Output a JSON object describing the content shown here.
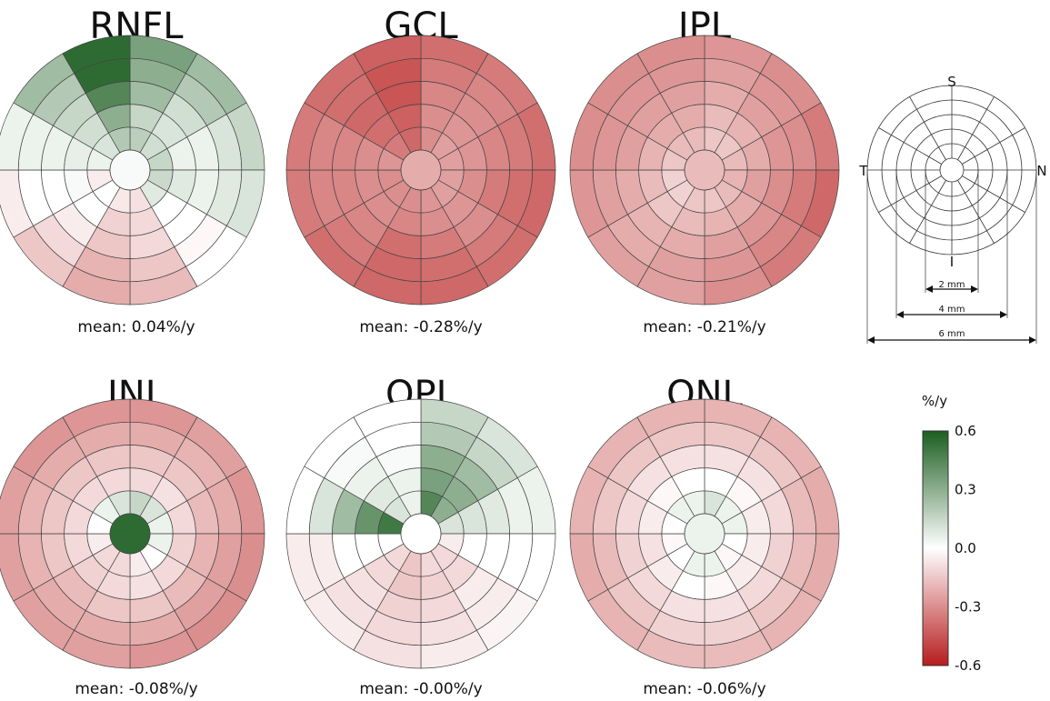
{
  "panels": [
    {
      "title": "RNFL",
      "mean": "mean: 0.04%/y",
      "rings": [
        [
          0.18,
          0.12,
          0.15,
          0.14,
          0.08,
          -0.08,
          -0.06,
          0.0,
          -0.05,
          0.05,
          0.1,
          0.2
        ],
        [
          0.15,
          0.1,
          0.05,
          0.08,
          0.0,
          -0.1,
          -0.12,
          0.0,
          0.02,
          0.06,
          0.12,
          0.3
        ],
        [
          0.25,
          0.12,
          0.05,
          0.05,
          0.0,
          -0.1,
          -0.15,
          -0.05,
          0.0,
          0.05,
          0.15,
          0.45
        ],
        [
          0.3,
          0.2,
          0.1,
          0.08,
          -0.02,
          -0.15,
          -0.2,
          -0.1,
          0.0,
          0.05,
          0.2,
          0.55
        ],
        [
          0.35,
          0.25,
          0.15,
          0.1,
          0.0,
          -0.18,
          -0.22,
          -0.15,
          -0.05,
          0.05,
          0.25,
          0.55
        ]
      ]
    },
    {
      "title": "GCL",
      "mean": "mean: -0.28%/y",
      "rings": [
        [
          -0.3,
          -0.25,
          -0.25,
          -0.25,
          -0.25,
          -0.28,
          -0.3,
          -0.3,
          -0.3,
          -0.28,
          -0.35,
          -0.4
        ],
        [
          -0.3,
          -0.28,
          -0.28,
          -0.3,
          -0.28,
          -0.3,
          -0.32,
          -0.3,
          -0.3,
          -0.3,
          -0.38,
          -0.42
        ],
        [
          -0.32,
          -0.3,
          -0.32,
          -0.35,
          -0.3,
          -0.35,
          -0.38,
          -0.32,
          -0.32,
          -0.32,
          -0.4,
          -0.45
        ],
        [
          -0.35,
          -0.32,
          -0.35,
          -0.38,
          -0.35,
          -0.38,
          -0.4,
          -0.35,
          -0.32,
          -0.32,
          -0.38,
          -0.45
        ],
        [
          -0.38,
          -0.35,
          -0.38,
          -0.4,
          -0.38,
          -0.4,
          -0.4,
          -0.38,
          -0.35,
          -0.35,
          -0.38,
          -0.42
        ]
      ]
    },
    {
      "title": "IPL",
      "mean": "mean: -0.21%/y",
      "rings": [
        [
          -0.15,
          -0.15,
          -0.18,
          -0.2,
          -0.18,
          -0.15,
          -0.15,
          -0.12,
          -0.12,
          -0.15,
          -0.18,
          -0.18
        ],
        [
          -0.18,
          -0.2,
          -0.22,
          -0.25,
          -0.22,
          -0.2,
          -0.18,
          -0.15,
          -0.18,
          -0.2,
          -0.22,
          -0.22
        ],
        [
          -0.22,
          -0.25,
          -0.28,
          -0.3,
          -0.28,
          -0.25,
          -0.22,
          -0.2,
          -0.22,
          -0.25,
          -0.25,
          -0.25
        ],
        [
          -0.25,
          -0.28,
          -0.3,
          -0.35,
          -0.32,
          -0.28,
          -0.25,
          -0.22,
          -0.25,
          -0.28,
          -0.28,
          -0.28
        ],
        [
          -0.28,
          -0.3,
          -0.35,
          -0.4,
          -0.35,
          -0.3,
          -0.25,
          -0.25,
          -0.28,
          -0.3,
          -0.3,
          -0.3
        ]
      ]
    },
    {
      "title": "INL",
      "mean": "mean: -0.08%/y",
      "rings": [
        [
          0.15,
          0.1,
          0.05,
          0.05,
          0.0,
          -0.05,
          -0.1,
          -0.1,
          -0.05,
          0.0,
          0.05,
          0.1
        ],
        [
          -0.1,
          -0.08,
          -0.1,
          -0.12,
          -0.1,
          -0.08,
          -0.1,
          -0.12,
          -0.1,
          -0.1,
          -0.1,
          -0.1
        ],
        [
          -0.15,
          -0.15,
          -0.18,
          -0.2,
          -0.18,
          -0.15,
          -0.15,
          -0.18,
          -0.15,
          -0.15,
          -0.15,
          -0.15
        ],
        [
          -0.22,
          -0.2,
          -0.22,
          -0.25,
          -0.25,
          -0.22,
          -0.22,
          -0.22,
          -0.2,
          -0.2,
          -0.22,
          -0.22
        ],
        [
          -0.28,
          -0.25,
          -0.28,
          -0.3,
          -0.3,
          -0.28,
          -0.25,
          -0.25,
          -0.25,
          -0.25,
          -0.28,
          -0.28
        ]
      ]
    },
    {
      "title": "OPL",
      "mean": "mean: -0.00%/y",
      "rings": [
        [
          0.45,
          0.3,
          0.1,
          -0.05,
          -0.1,
          -0.1,
          -0.15,
          -0.1,
          0.0,
          0.5,
          0.1,
          0.05
        ],
        [
          0.35,
          0.3,
          0.1,
          0.0,
          -0.1,
          -0.12,
          -0.15,
          -0.1,
          0.0,
          0.4,
          0.08,
          0.05
        ],
        [
          0.3,
          0.25,
          0.08,
          0.0,
          -0.05,
          -0.1,
          -0.12,
          -0.08,
          0.0,
          0.25,
          0.05,
          0.02
        ],
        [
          0.2,
          0.15,
          0.05,
          0.0,
          -0.05,
          -0.08,
          -0.1,
          -0.08,
          -0.05,
          0.1,
          0.02,
          0.0
        ],
        [
          0.15,
          0.1,
          0.05,
          0.0,
          -0.03,
          -0.05,
          -0.08,
          -0.05,
          -0.05,
          0.0,
          0.0,
          0.0
        ]
      ]
    },
    {
      "title": "ONL",
      "mean": "mean: -0.06%/y",
      "rings": [
        [
          0.1,
          0.05,
          0.05,
          0.0,
          -0.02,
          0.05,
          0.05,
          0.0,
          -0.02,
          0.0,
          0.05,
          0.05
        ],
        [
          0.0,
          -0.02,
          -0.05,
          -0.05,
          -0.05,
          -0.02,
          0.0,
          -0.05,
          -0.08,
          -0.05,
          -0.02,
          0.0
        ],
        [
          -0.08,
          -0.08,
          -0.1,
          -0.12,
          -0.1,
          -0.08,
          -0.08,
          -0.1,
          -0.12,
          -0.1,
          -0.08,
          -0.08
        ],
        [
          -0.15,
          -0.15,
          -0.18,
          -0.18,
          -0.15,
          -0.12,
          -0.12,
          -0.15,
          -0.18,
          -0.15,
          -0.15,
          -0.15
        ],
        [
          -0.2,
          -0.2,
          -0.22,
          -0.22,
          -0.2,
          -0.18,
          -0.18,
          -0.2,
          -0.22,
          -0.2,
          -0.2,
          -0.2
        ]
      ]
    }
  ],
  "centers": [
    0.02,
    -0.22,
    -0.18,
    0.55,
    0.0,
    0.05
  ],
  "schematic": {
    "labels": {
      "top": "S",
      "left": "T",
      "right": "N",
      "bottom": "I"
    },
    "measures": [
      "2 mm",
      "4 mm",
      "6 mm"
    ]
  },
  "colorbar": {
    "title": "%/y",
    "ticks": [
      "0.6",
      "0.3",
      "0.0",
      "-0.3",
      "-0.6"
    ],
    "tick_values": [
      0.6,
      0.3,
      0.0,
      -0.3,
      -0.6
    ],
    "range": [
      -0.6,
      0.6
    ],
    "colors": {
      "low": "#b71c1c",
      "mid": "#ffffff",
      "high": "#1b5e20"
    }
  }
}
